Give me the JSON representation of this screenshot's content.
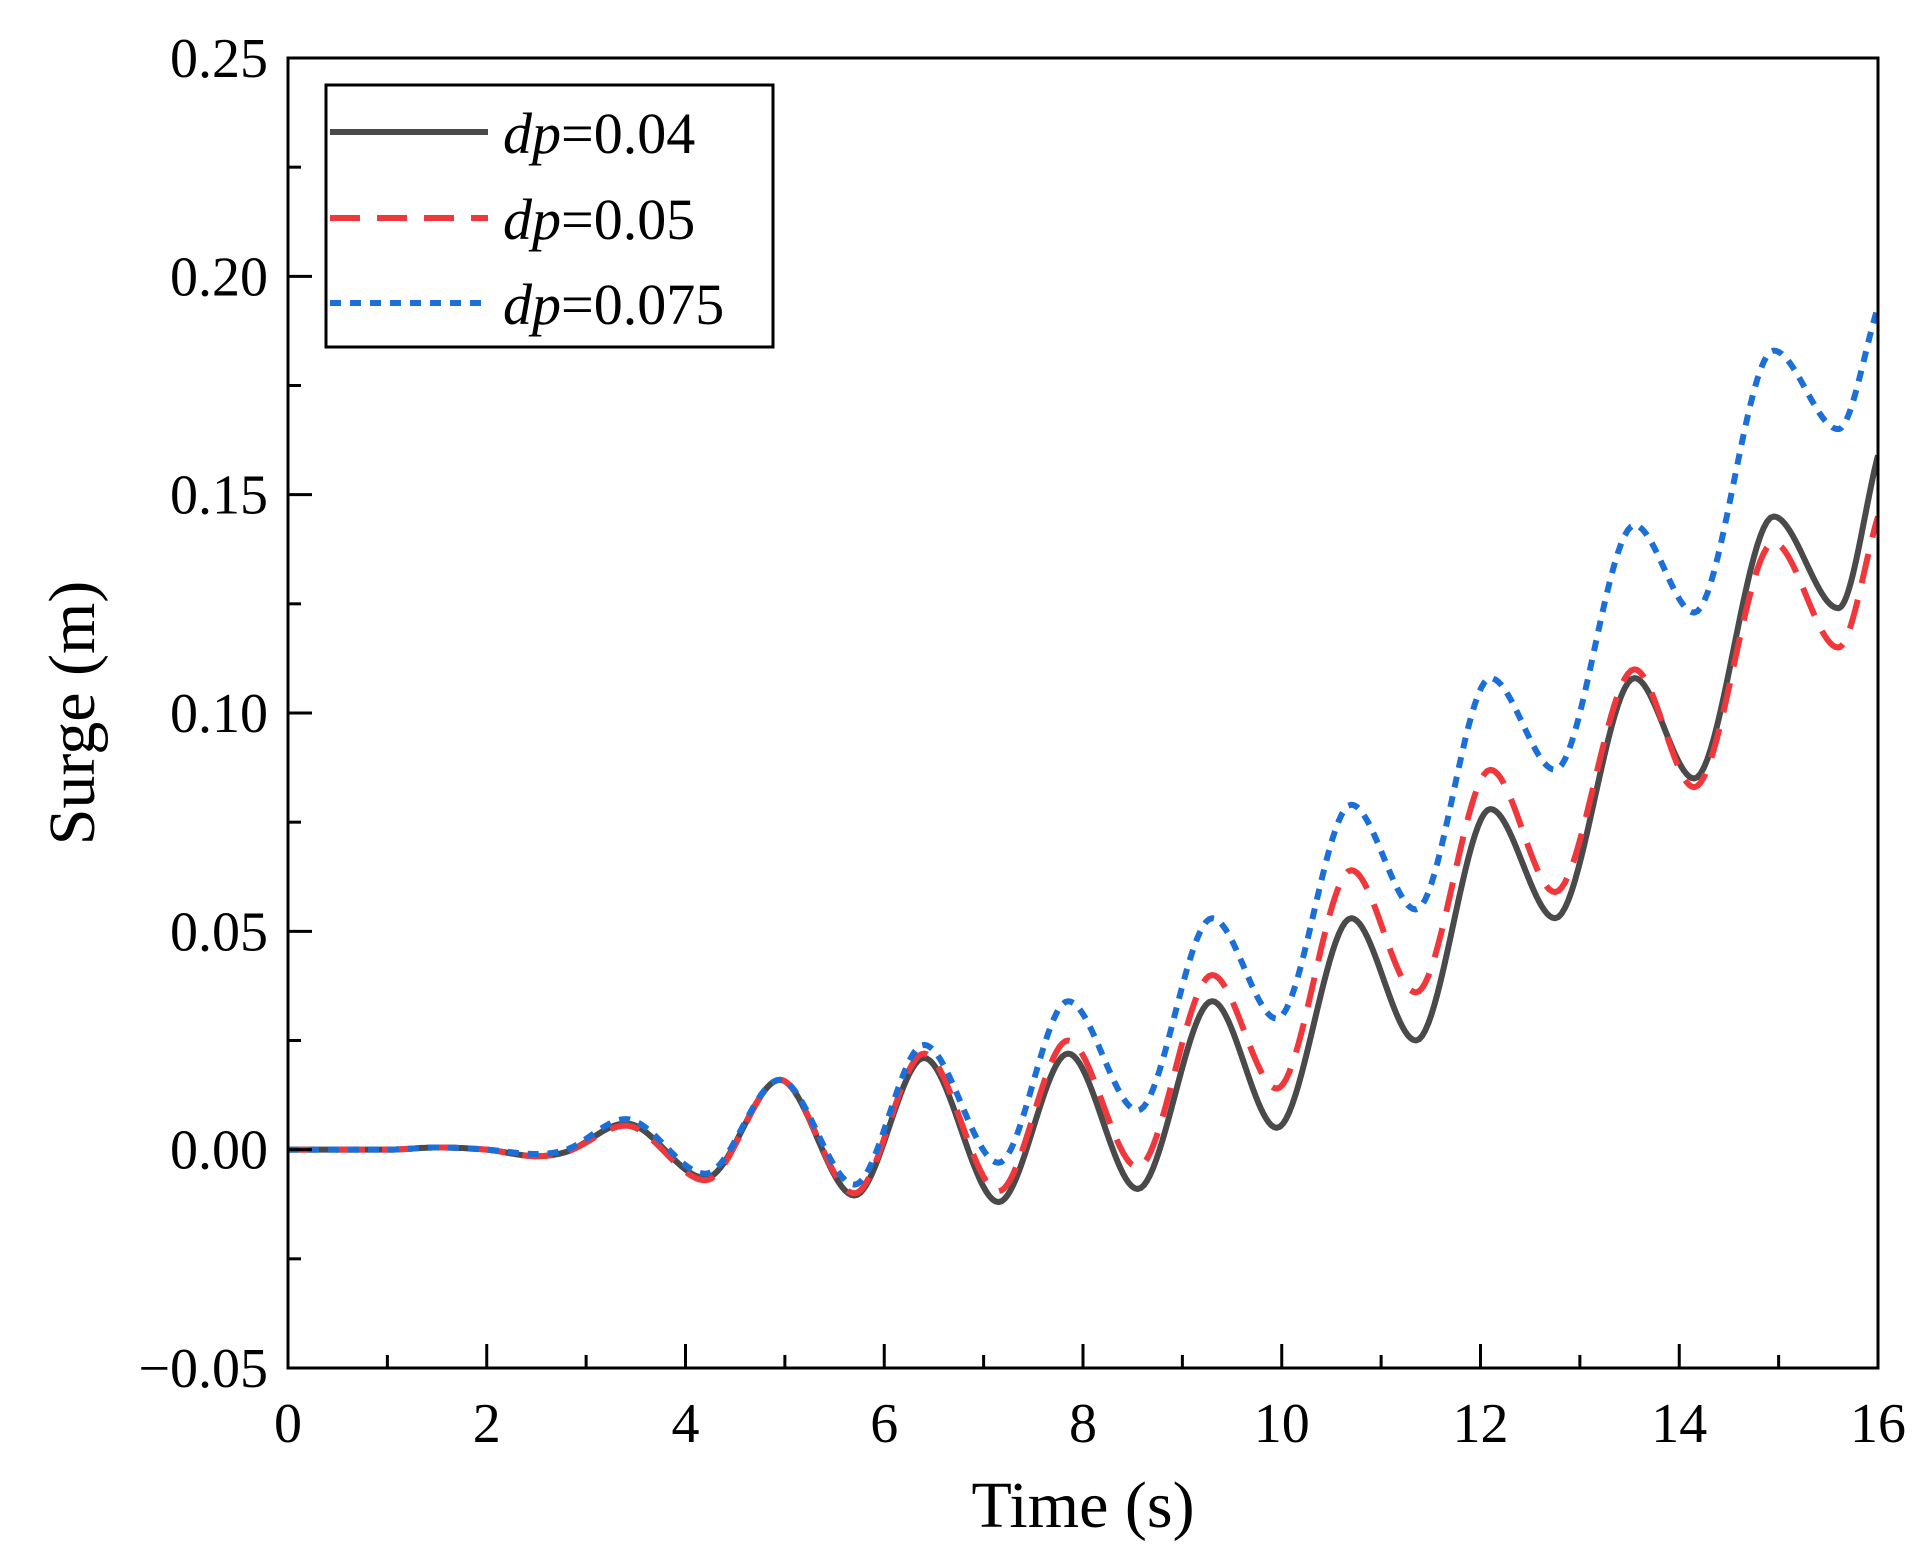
{
  "chart_data": {
    "type": "line",
    "title": "",
    "xlabel": "Time (s)",
    "ylabel": "Surge (m)",
    "xlim": [
      0,
      16
    ],
    "ylim": [
      -0.05,
      0.25
    ],
    "x_ticks": [
      0,
      2,
      4,
      6,
      8,
      10,
      12,
      14,
      16
    ],
    "x_tick_labels": [
      "0",
      "2",
      "4",
      "6",
      "8",
      "10",
      "12",
      "14",
      "16"
    ],
    "y_ticks": [
      -0.05,
      0.0,
      0.05,
      0.1,
      0.15,
      0.2,
      0.25
    ],
    "y_tick_labels": [
      "−0.05",
      "0.00",
      "0.05",
      "0.10",
      "0.15",
      "0.20",
      "0.25"
    ],
    "grid": false,
    "legend_position": "top-left",
    "x": [
      0,
      1,
      1.5,
      2,
      2.5,
      2.8,
      3.4,
      4.2,
      4.95,
      5.7,
      6.4,
      7.15,
      7.85,
      8.55,
      9.3,
      9.95,
      10.7,
      11.35,
      12.1,
      12.75,
      13.55,
      14.15,
      14.95,
      15.6,
      16
    ],
    "series": [
      {
        "name": "dp=0.04",
        "label_italic": "dp",
        "label_rest": "=0.04",
        "color": "#4a4a4a",
        "style": "solid",
        "values": [
          0,
          0,
          0.0005,
          0,
          -0.0015,
          -0.0005,
          0.006,
          -0.0065,
          0.016,
          -0.0105,
          0.021,
          -0.012,
          0.022,
          -0.009,
          0.034,
          0.005,
          0.053,
          0.025,
          0.078,
          0.053,
          0.108,
          0.085,
          0.145,
          0.124,
          0.159
        ]
      },
      {
        "name": "dp=0.05",
        "label_italic": "dp",
        "label_rest": "=0.05",
        "color": "#f0383c",
        "style": "dashed",
        "values": [
          0,
          0,
          0.0005,
          0,
          -0.0015,
          -0.0005,
          0.0055,
          -0.007,
          0.016,
          -0.01,
          0.022,
          -0.0095,
          0.025,
          -0.004,
          0.04,
          0.014,
          0.064,
          0.036,
          0.087,
          0.059,
          0.11,
          0.083,
          0.139,
          0.115,
          0.145
        ]
      },
      {
        "name": "dp=0.075",
        "label_italic": "dp",
        "label_rest": "=0.075",
        "color": "#1a6fd8",
        "style": "dotted",
        "values": [
          0,
          0,
          0.0005,
          0,
          -0.001,
          0,
          0.007,
          -0.0055,
          0.016,
          -0.008,
          0.024,
          -0.003,
          0.034,
          0.009,
          0.053,
          0.03,
          0.079,
          0.055,
          0.108,
          0.087,
          0.143,
          0.123,
          0.183,
          0.165,
          0.193
        ]
      }
    ]
  }
}
